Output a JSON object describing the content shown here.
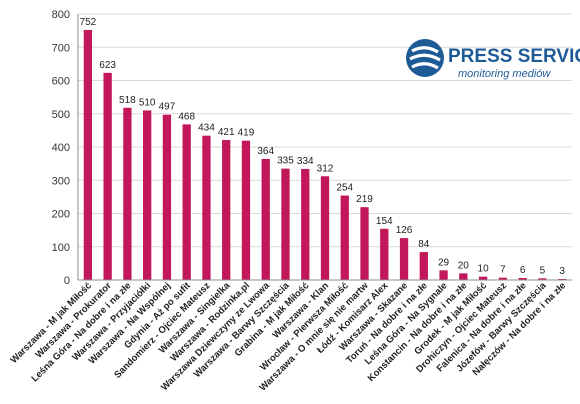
{
  "logo": {
    "name": "press-service-logo-icon",
    "title": "PRESS SERVICE",
    "subtitle": "monitoring mediów"
  },
  "colors": {
    "bar": "#C2185B",
    "logo_blue": "#1E5B96"
  },
  "chart_data": {
    "type": "bar",
    "title": "",
    "xlabel": "",
    "ylabel": "",
    "ylim": [
      0,
      800
    ],
    "yticks": [
      0,
      100,
      200,
      300,
      400,
      500,
      600,
      700,
      800
    ],
    "grid": true,
    "categories": [
      "Warszawa - M jak Miłość",
      "Warszawa - Prokurator",
      "Leśna Góra - Na dobre i na złe",
      "Warszawa - Przyjaciółki",
      "Warszawa - Na Wspólnej",
      "Gdynia - Aż po sufit",
      "Sandomierz - Ojciec Mateusz",
      "Warszawa - Singielka",
      "Warszawa - Rodzinka.pl",
      "Warszawa Dziewczyny ze Lwowa",
      "Warszawa - Barwy Szczęścia",
      "Grabina - M jak Miłość",
      "Warszawa - Klan",
      "Wrocław - Pierwsza Miłość",
      "Warszawa - O mnie się nie martw",
      "Łódź - Komisarz Alex",
      "Warszawa - Skazane",
      "Toruń - Na dobre i na złe",
      "Leśna Góra - Na Sygnale",
      "Konstancin - Na dobre i na złe",
      "Grodek - M jak Miłość",
      "Drohiczyn - Ojciec Mateusz",
      "Falenica - Na dobre i na złe",
      "Józefów - Barwy Szczęścia",
      "Nałęczów - Na dobre i na złe"
    ],
    "values": [
      752,
      623,
      518,
      510,
      497,
      468,
      434,
      421,
      419,
      364,
      335,
      334,
      312,
      254,
      219,
      154,
      126,
      84,
      29,
      20,
      10,
      7,
      6,
      5,
      3
    ]
  }
}
